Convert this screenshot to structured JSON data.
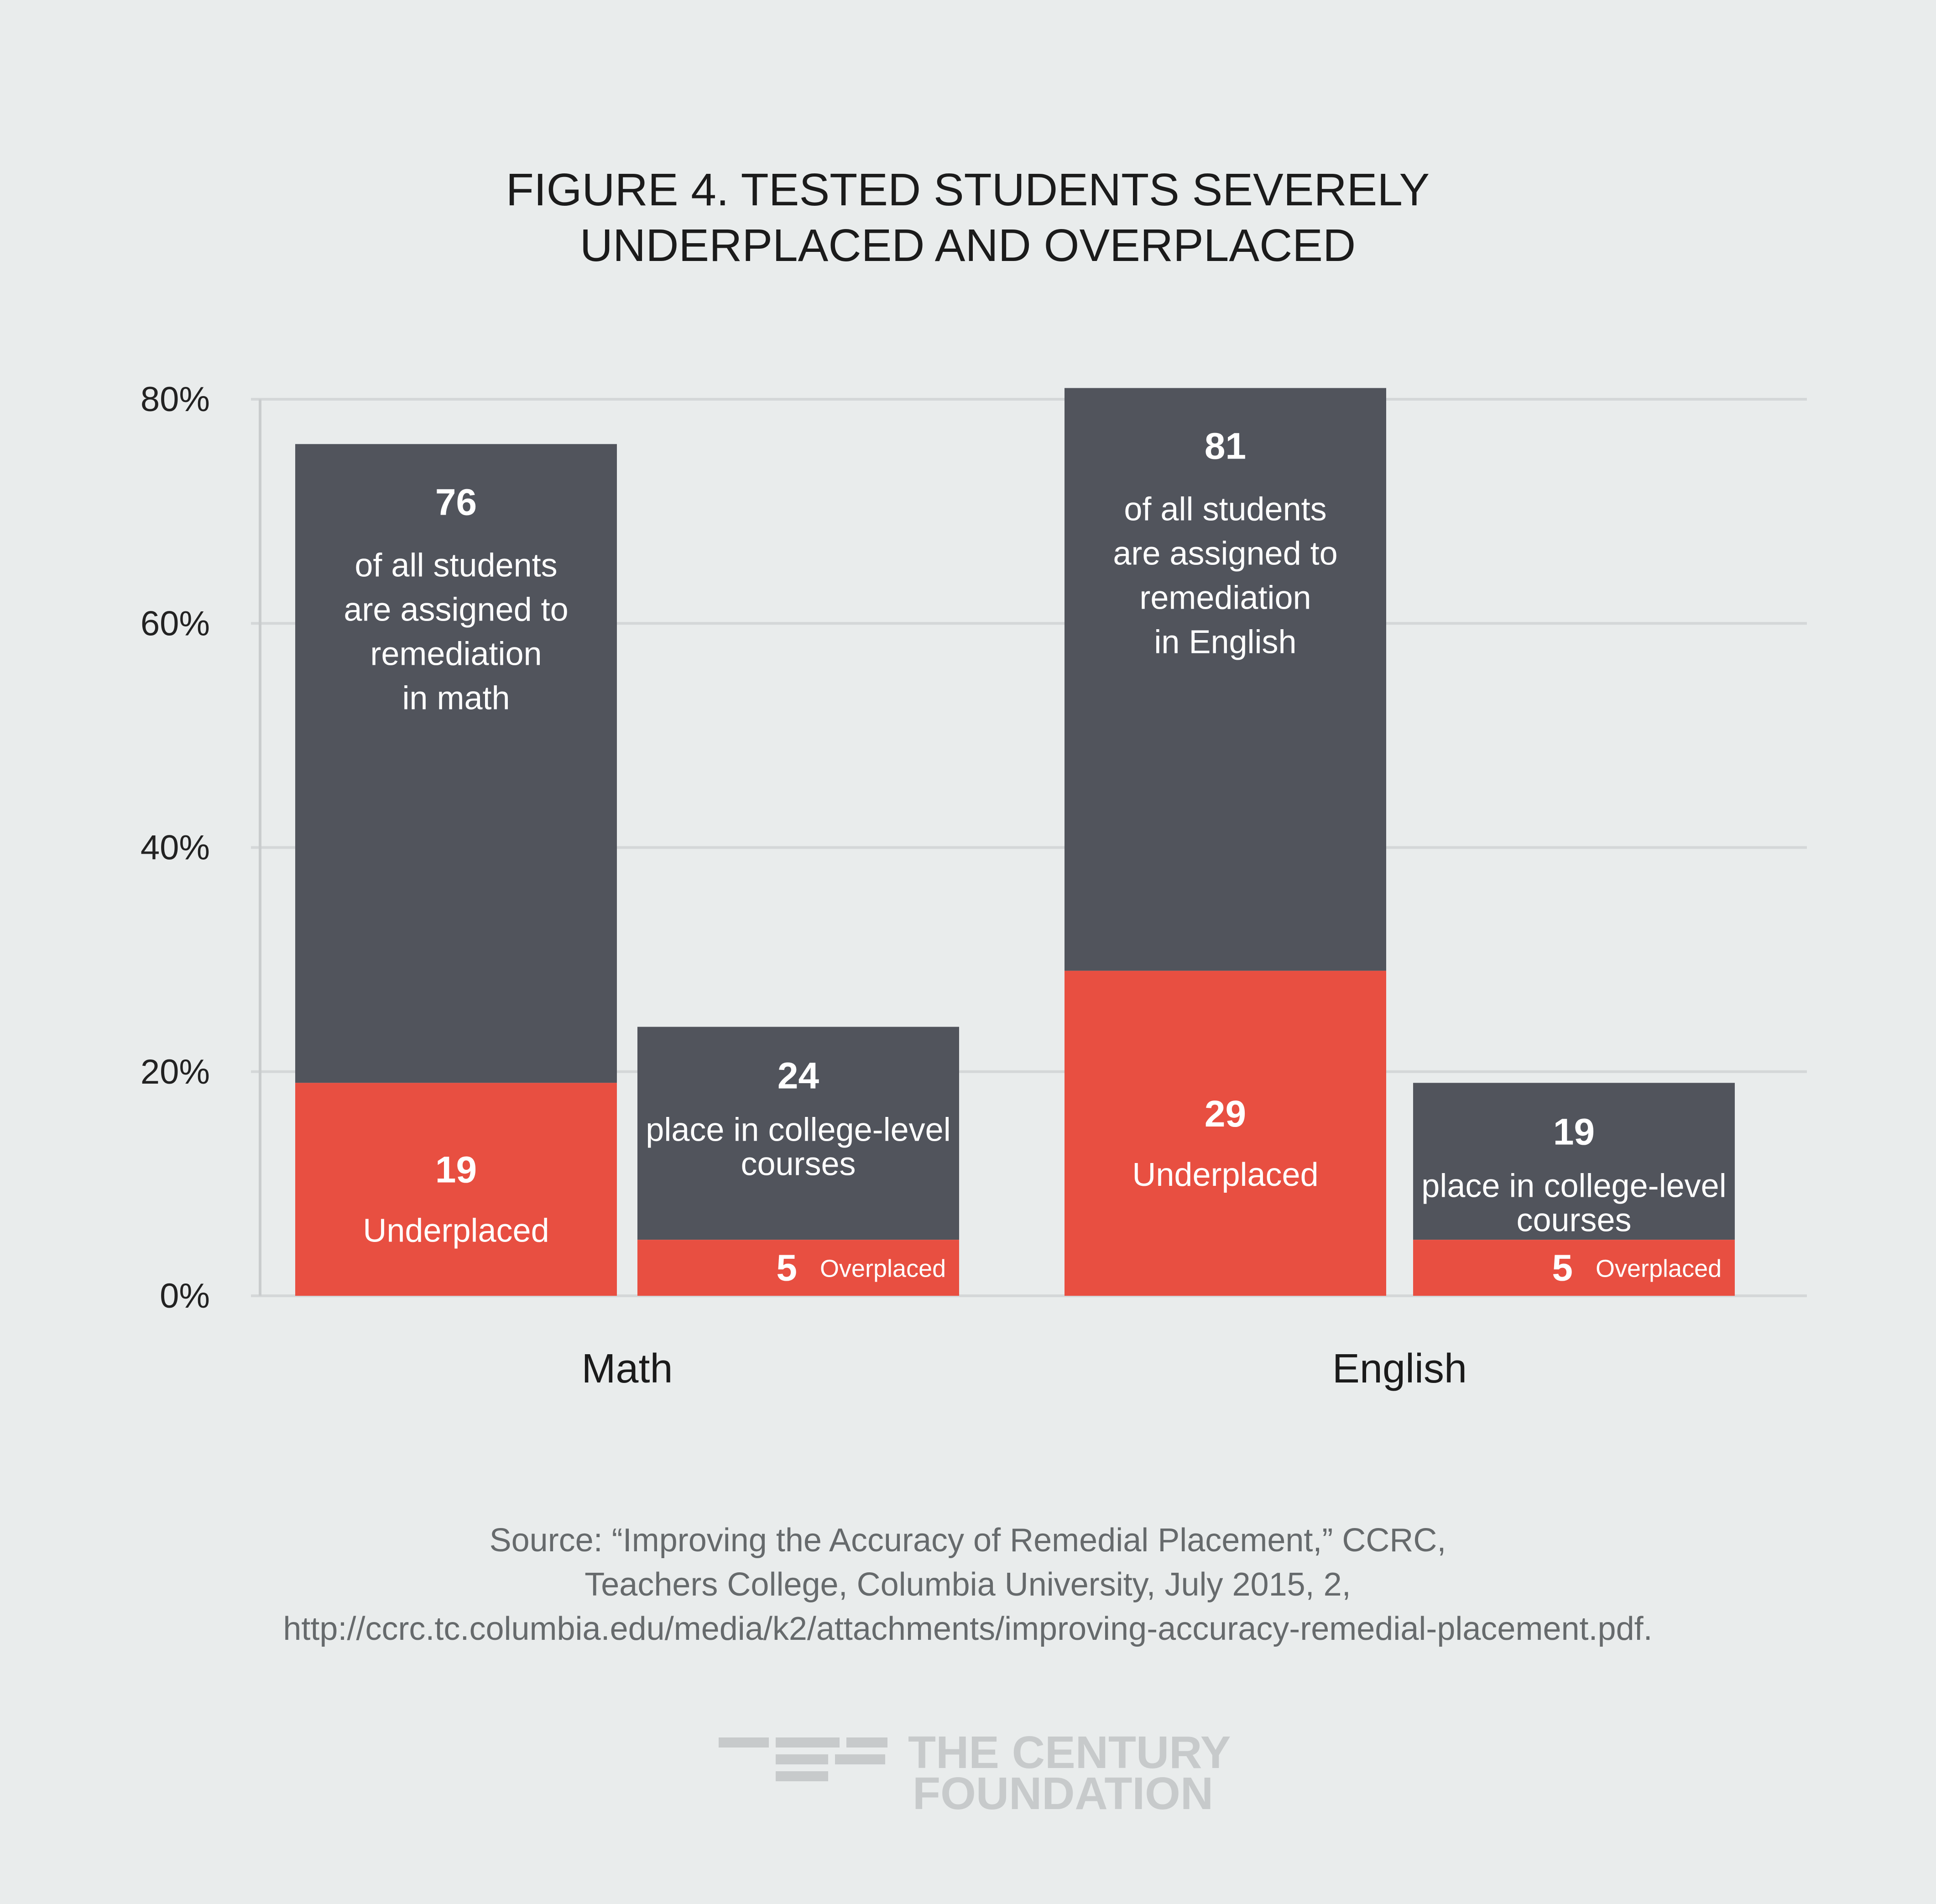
{
  "chart_data": {
    "type": "bar",
    "title_lines": [
      "FIGURE 4. TESTED STUDENTS SEVERELY",
      "UNDERPLACED AND OVERPLACED"
    ],
    "ylim": [
      0,
      80
    ],
    "yticks": [
      {
        "value": 0,
        "label": "0%"
      },
      {
        "value": 20,
        "label": "20%"
      },
      {
        "value": 40,
        "label": "40%"
      },
      {
        "value": 60,
        "label": "60%"
      },
      {
        "value": 80,
        "label": "80%"
      }
    ],
    "categories": [
      "Math",
      "English"
    ],
    "colors": {
      "remediation": "#51545c",
      "misplaced": "#e84f41",
      "grid": "#d4d7d8",
      "axis": "#c9cccd"
    },
    "groups": [
      {
        "category": "Math",
        "bars": [
          {
            "kind": "remediation",
            "total": 76,
            "total_label": "76",
            "total_text": [
              "of all students",
              "are assigned to",
              "remediation",
              "in math"
            ],
            "part": 19,
            "part_label": "19",
            "part_text": [
              "Underplaced"
            ]
          },
          {
            "kind": "college",
            "total": 24,
            "total_label": "24",
            "total_text": [
              "place in college-level",
              "courses"
            ],
            "part": 5,
            "part_label": "5",
            "part_text": [
              "Overplaced"
            ]
          }
        ]
      },
      {
        "category": "English",
        "bars": [
          {
            "kind": "remediation",
            "total": 81,
            "total_label": "81",
            "total_text": [
              "of all students",
              "are assigned to",
              "remediation",
              "in English"
            ],
            "part": 29,
            "part_label": "29",
            "part_text": [
              "Underplaced"
            ]
          },
          {
            "kind": "college",
            "total": 19,
            "total_label": "19",
            "total_text": [
              "place in college-level",
              "courses"
            ],
            "part": 5,
            "part_label": "5",
            "part_text": [
              "Overplaced"
            ]
          }
        ]
      }
    ]
  },
  "source": {
    "lines": [
      "Source: “Improving the Accuracy of Remedial Placement,” CCRC,",
      "Teachers College, Columbia University, July 2015, 2,",
      "http://ccrc.tc.columbia.edu/media/k2/attachments/improving-accuracy-remedial-placement.pdf."
    ]
  },
  "logo": {
    "name": "The Century Foundation logo",
    "line1": "THE CENTURY",
    "line2": "FOUNDATION",
    "color": "#c7cacb"
  }
}
